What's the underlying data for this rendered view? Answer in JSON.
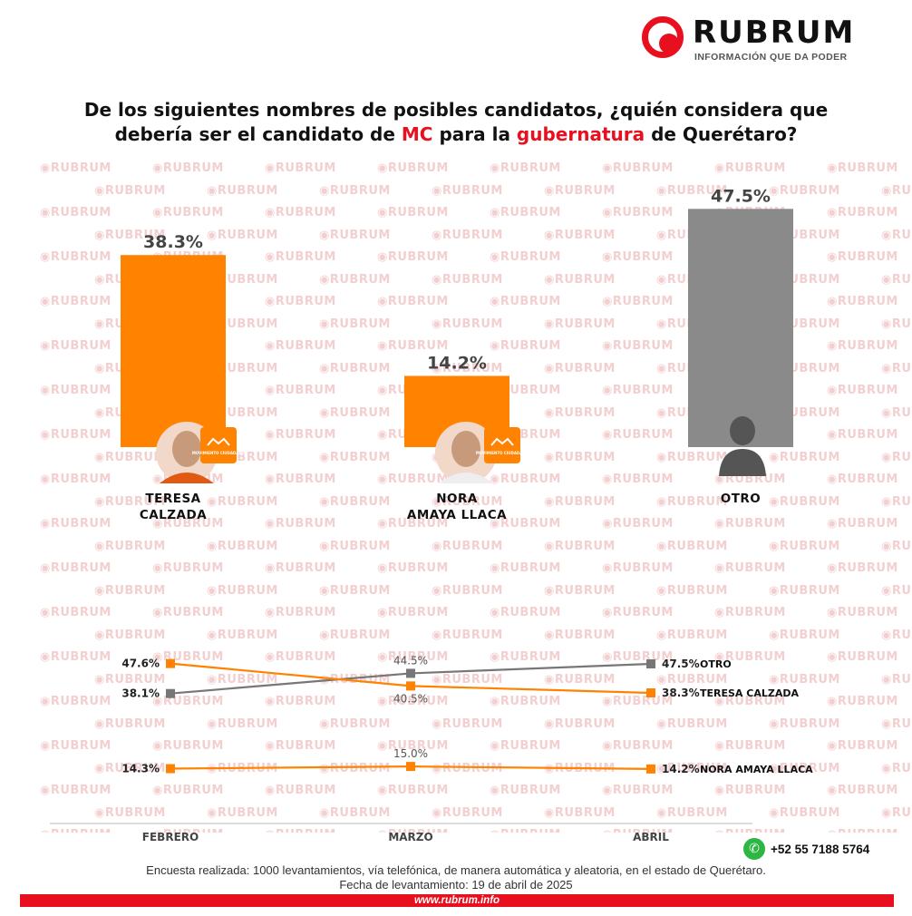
{
  "brand": {
    "name": "RUBRUM",
    "tagline": "INFORMACIÓN QUE DA PODER",
    "watermark": "RUBRUM",
    "url": "www.rubrum.info",
    "phone": "+52 55 7188 5764",
    "accent": "#e8101e"
  },
  "title": {
    "part1": "De los siguientes nombres de posibles candidatos, ¿quién considera que",
    "part2": "debería ser el candidato de ",
    "mc": "MC",
    "part3": " para la ",
    "highlight": "gubernatura",
    "part4": " de Querétaro?"
  },
  "chart_data": [
    {
      "type": "bar",
      "categories": [
        "TERESA CALZADA",
        "NORA AMAYA LLACA",
        "OTRO"
      ],
      "category_lines": [
        [
          "TERESA",
          "CALZADA"
        ],
        [
          "NORA",
          "AMAYA LLACA"
        ],
        [
          "OTRO"
        ]
      ],
      "values": [
        38.3,
        14.2,
        47.5
      ],
      "value_labels": [
        "38.3%",
        "14.2%",
        "47.5%"
      ],
      "colors": [
        "#ff8200",
        "#ff8200",
        "#8a8a8a"
      ],
      "party_badge": [
        true,
        true,
        false
      ],
      "badge_text": "MOVIMIENTO CIUDADANO",
      "ylim": [
        0,
        50
      ],
      "grid": false
    },
    {
      "type": "line",
      "x": [
        "FEBRERO",
        "MARZO",
        "ABRIL"
      ],
      "ylim": [
        0,
        50
      ],
      "grid": false,
      "series": [
        {
          "name": "OTRO",
          "values": [
            38.1,
            44.5,
            47.5
          ],
          "labels": [
            "38.1%",
            "44.5%",
            "47.5%"
          ],
          "color": "#777777"
        },
        {
          "name": "TERESA CALZADA",
          "values": [
            47.6,
            40.5,
            38.3
          ],
          "labels": [
            "47.6%",
            "40.5%",
            "38.3%"
          ],
          "color": "#ff8200"
        },
        {
          "name": "NORA AMAYA LLACA",
          "values": [
            14.3,
            15.0,
            14.2
          ],
          "labels": [
            "14.3%",
            "15.0%",
            "14.2%"
          ],
          "color": "#ff8200"
        }
      ]
    }
  ],
  "footer": {
    "note1": "Encuesta realizada: 1000 levantamientos, vía telefónica, de manera automática y aleatoria, en el estado de Querétaro.",
    "note2": "Fecha de levantamiento: 19 de abril de 2025"
  }
}
